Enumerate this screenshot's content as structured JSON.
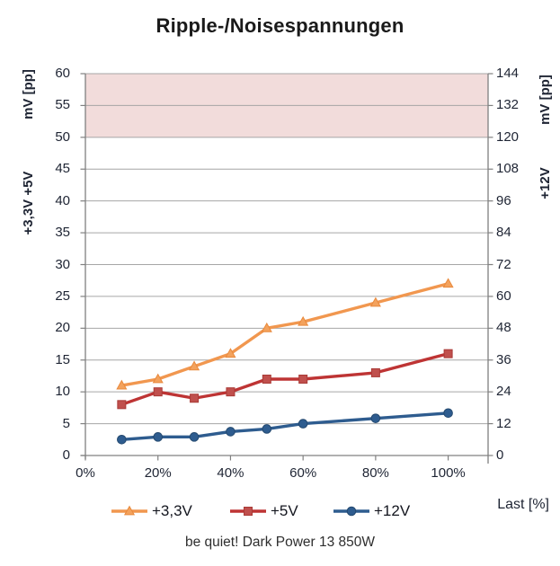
{
  "header": {
    "title": "Ripple-/Noisespannungen"
  },
  "footer": {
    "caption": "be quiet! Dark Power 13 850W"
  },
  "chart_data": {
    "type": "line",
    "title": "Ripple-/Noisespannungen",
    "x_values_pct": [
      10,
      20,
      30,
      40,
      50,
      60,
      80,
      100
    ],
    "x_axis": {
      "label": "Last [%]",
      "tick_values": [
        0,
        20,
        40,
        60,
        80,
        100
      ],
      "tick_labels": [
        "0%",
        "20%",
        "40%",
        "60%",
        "80%",
        "100%"
      ],
      "min": 0,
      "max": 111
    },
    "left_axis": {
      "unit_label": "mV [pp]",
      "series_label": "+3,3V  +5V",
      "min": 0,
      "max": 60,
      "tick_step": 5,
      "tick_labels": [
        "60",
        "55",
        "50",
        "45",
        "40",
        "35",
        "30",
        "25",
        "20",
        "15",
        "10",
        "5",
        "0"
      ]
    },
    "right_axis": {
      "unit_label": "mV [pp]",
      "series_label": "+12V",
      "min": 0,
      "max": 144,
      "tick_step": 12,
      "tick_labels": [
        "144",
        "132",
        "120",
        "108",
        "96",
        "84",
        "72",
        "60",
        "48",
        "36",
        "24",
        "12",
        "0"
      ]
    },
    "limit_band": {
      "axis": "left",
      "from": 50,
      "to": 60,
      "fill": "#F2DCDB"
    },
    "grid": {
      "on": true,
      "color": "#A6A6A6",
      "axis_color": "#808080"
    },
    "legend": {
      "position": "bottom"
    },
    "series": [
      {
        "name": "+3,3V",
        "axis": "left",
        "marker": "triangle",
        "color": "#F1974F",
        "marker_fill": "#F3A25D",
        "marker_stroke": "#E9893C",
        "values": [
          11,
          12,
          14,
          16,
          20,
          21,
          24,
          27
        ]
      },
      {
        "name": "+5V",
        "axis": "left",
        "marker": "square",
        "color": "#BE3434",
        "marker_fill": "#C0504D",
        "marker_stroke": "#A93A36",
        "values": [
          8,
          10,
          9,
          10,
          12,
          12,
          13,
          16
        ]
      },
      {
        "name": "+12V",
        "axis": "right",
        "marker": "circle",
        "color": "#2E5C8F",
        "marker_fill": "#2E5C8F",
        "marker_stroke": "#24496F",
        "values": [
          6,
          7,
          7,
          9,
          10,
          12,
          14,
          16
        ]
      }
    ]
  }
}
